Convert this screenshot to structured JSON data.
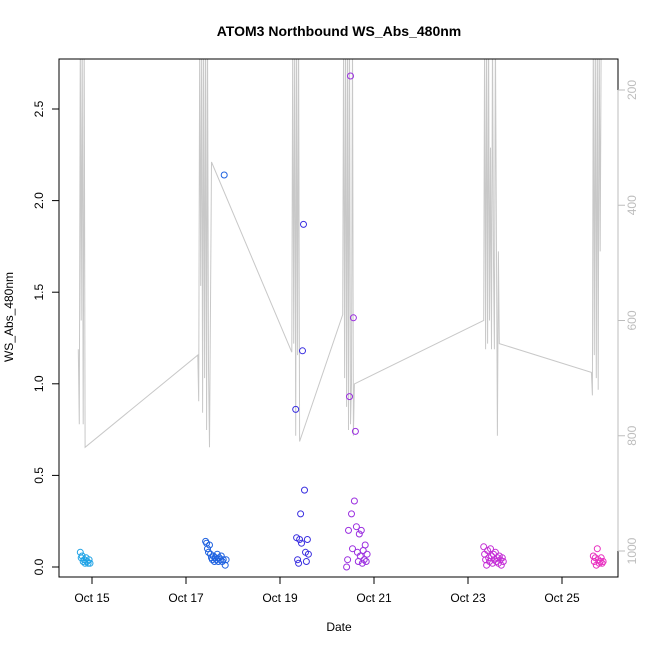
{
  "chart_data": {
    "type": "scatter",
    "title": "ATOM3 Northbound WS_Abs_480nm",
    "xlabel": "Date",
    "ylabel": "WS_Abs_480nm",
    "ylim": [
      0,
      2.78
    ],
    "x_tick_labels": [
      "Oct 15",
      "Oct 17",
      "Oct 19",
      "Oct 21",
      "Oct 23",
      "Oct 25"
    ],
    "x_tick_dates": [
      "2016-10-15",
      "2016-10-17",
      "2016-10-19",
      "2016-10-21",
      "2016-10-23",
      "2016-10-25"
    ],
    "y_ticks": [
      0.0,
      0.5,
      1.0,
      1.5,
      2.0,
      2.5
    ],
    "y_tick_labels": [
      "0.0",
      "0.5",
      "1.0",
      "1.5",
      "2.0",
      "2.5"
    ],
    "secondary_axis": {
      "side": "right",
      "reversed": true,
      "ticks": [
        200,
        400,
        600,
        800,
        1000
      ],
      "tick_labels": [
        "200",
        "400",
        "600",
        "800",
        "1000"
      ],
      "color": "#bdbdbd"
    },
    "colors": {
      "line": "#c8c8c8",
      "axis": "#000000",
      "right_axis": "#bdbdbd"
    },
    "marker": "open-circle",
    "series": [
      {
        "color": "#1fa3e6",
        "points": [
          {
            "x": "2016-10-14 18:00",
            "y": 0.08
          },
          {
            "x": "2016-10-14 18:30",
            "y": 0.05
          },
          {
            "x": "2016-10-14 19:00",
            "y": 0.06
          },
          {
            "x": "2016-10-14 19:30",
            "y": 0.03
          },
          {
            "x": "2016-10-14 20:00",
            "y": 0.04
          },
          {
            "x": "2016-10-14 20:30",
            "y": 0.02
          },
          {
            "x": "2016-10-14 21:00",
            "y": 0.05
          },
          {
            "x": "2016-10-14 21:30",
            "y": 0.03
          },
          {
            "x": "2016-10-14 22:00",
            "y": 0.02
          },
          {
            "x": "2016-10-14 22:30",
            "y": 0.04
          },
          {
            "x": "2016-10-14 23:00",
            "y": 0.02
          }
        ]
      },
      {
        "color": "#1f62e0",
        "points": [
          {
            "x": "2016-10-17 10:00",
            "y": 0.14
          },
          {
            "x": "2016-10-17 10:30",
            "y": 0.13
          },
          {
            "x": "2016-10-17 11:00",
            "y": 0.1
          },
          {
            "x": "2016-10-17 11:30",
            "y": 0.08
          },
          {
            "x": "2016-10-17 12:00",
            "y": 0.12
          },
          {
            "x": "2016-10-17 12:30",
            "y": 0.07
          },
          {
            "x": "2016-10-17 13:00",
            "y": 0.05
          },
          {
            "x": "2016-10-17 13:30",
            "y": 0.04
          },
          {
            "x": "2016-10-17 14:00",
            "y": 0.06
          },
          {
            "x": "2016-10-17 14:30",
            "y": 0.03
          },
          {
            "x": "2016-10-17 15:00",
            "y": 0.05
          },
          {
            "x": "2016-10-17 15:30",
            "y": 0.04
          },
          {
            "x": "2016-10-17 16:00",
            "y": 0.07
          },
          {
            "x": "2016-10-17 16:30",
            "y": 0.03
          },
          {
            "x": "2016-10-17 17:00",
            "y": 0.05
          },
          {
            "x": "2016-10-17 17:30",
            "y": 0.04
          },
          {
            "x": "2016-10-17 18:00",
            "y": 0.06
          },
          {
            "x": "2016-10-17 18:30",
            "y": 0.03
          },
          {
            "x": "2016-10-17 19:00",
            "y": 0.04
          },
          {
            "x": "2016-10-17 19:30",
            "y": 2.14
          },
          {
            "x": "2016-10-17 20:00",
            "y": 0.01
          },
          {
            "x": "2016-10-17 20:30",
            "y": 0.04
          }
        ]
      },
      {
        "color": "#3a2fe0",
        "points": [
          {
            "x": "2016-10-19 08:00",
            "y": 0.86
          },
          {
            "x": "2016-10-19 08:30",
            "y": 0.16
          },
          {
            "x": "2016-10-19 09:00",
            "y": 0.04
          },
          {
            "x": "2016-10-19 09:30",
            "y": 0.02
          },
          {
            "x": "2016-10-19 10:00",
            "y": 0.15
          },
          {
            "x": "2016-10-19 10:30",
            "y": 0.29
          },
          {
            "x": "2016-10-19 11:00",
            "y": 0.13
          },
          {
            "x": "2016-10-19 11:30",
            "y": 1.18
          },
          {
            "x": "2016-10-19 12:00",
            "y": 1.87
          },
          {
            "x": "2016-10-19 12:30",
            "y": 0.42
          },
          {
            "x": "2016-10-19 13:00",
            "y": 0.08
          },
          {
            "x": "2016-10-19 13:30",
            "y": 0.03
          },
          {
            "x": "2016-10-19 14:00",
            "y": 0.15
          },
          {
            "x": "2016-10-19 14:30",
            "y": 0.07
          }
        ]
      },
      {
        "color": "#9b2fe0",
        "points": [
          {
            "x": "2016-10-20 10:00",
            "y": 0.0
          },
          {
            "x": "2016-10-20 10:30",
            "y": 0.04
          },
          {
            "x": "2016-10-20 11:00",
            "y": 0.2
          },
          {
            "x": "2016-10-20 11:30",
            "y": 0.93
          },
          {
            "x": "2016-10-20 12:00",
            "y": 2.68
          },
          {
            "x": "2016-10-20 12:30",
            "y": 0.29
          },
          {
            "x": "2016-10-20 13:00",
            "y": 0.1
          },
          {
            "x": "2016-10-20 13:30",
            "y": 1.36
          },
          {
            "x": "2016-10-20 14:00",
            "y": 0.36
          },
          {
            "x": "2016-10-20 14:30",
            "y": 0.74
          },
          {
            "x": "2016-10-20 15:00",
            "y": 0.22
          },
          {
            "x": "2016-10-20 15:30",
            "y": 0.08
          },
          {
            "x": "2016-10-20 16:00",
            "y": 0.03
          },
          {
            "x": "2016-10-20 16:30",
            "y": 0.18
          },
          {
            "x": "2016-10-20 17:00",
            "y": 0.06
          },
          {
            "x": "2016-10-20 17:30",
            "y": 0.2
          },
          {
            "x": "2016-10-20 18:00",
            "y": 0.02
          },
          {
            "x": "2016-10-20 18:30",
            "y": 0.09
          },
          {
            "x": "2016-10-20 19:00",
            "y": 0.04
          },
          {
            "x": "2016-10-20 19:30",
            "y": 0.12
          },
          {
            "x": "2016-10-20 20:00",
            "y": 0.03
          },
          {
            "x": "2016-10-20 20:30",
            "y": 0.07
          }
        ]
      },
      {
        "color": "#c42fd6",
        "points": [
          {
            "x": "2016-10-23 08:00",
            "y": 0.11
          },
          {
            "x": "2016-10-23 08:30",
            "y": 0.07
          },
          {
            "x": "2016-10-23 09:00",
            "y": 0.04
          },
          {
            "x": "2016-10-23 09:30",
            "y": 0.01
          },
          {
            "x": "2016-10-23 10:00",
            "y": 0.09
          },
          {
            "x": "2016-10-23 10:30",
            "y": 0.05
          },
          {
            "x": "2016-10-23 11:00",
            "y": 0.03
          },
          {
            "x": "2016-10-23 11:30",
            "y": 0.1
          },
          {
            "x": "2016-10-23 12:00",
            "y": 0.06
          },
          {
            "x": "2016-10-23 12:30",
            "y": 0.02
          },
          {
            "x": "2016-10-23 13:00",
            "y": 0.07
          },
          {
            "x": "2016-10-23 13:30",
            "y": 0.04
          },
          {
            "x": "2016-10-23 14:00",
            "y": 0.08
          },
          {
            "x": "2016-10-23 14:30",
            "y": 0.03
          },
          {
            "x": "2016-10-23 15:00",
            "y": 0.05
          },
          {
            "x": "2016-10-23 15:30",
            "y": 0.02
          },
          {
            "x": "2016-10-23 16:00",
            "y": 0.06
          },
          {
            "x": "2016-10-23 16:30",
            "y": 0.04
          },
          {
            "x": "2016-10-23 17:00",
            "y": 0.01
          },
          {
            "x": "2016-10-23 17:30",
            "y": 0.05
          },
          {
            "x": "2016-10-23 18:00",
            "y": 0.03
          }
        ]
      },
      {
        "color": "#e82fc0",
        "points": [
          {
            "x": "2016-10-25 16:00",
            "y": 0.06
          },
          {
            "x": "2016-10-25 16:30",
            "y": 0.03
          },
          {
            "x": "2016-10-25 17:00",
            "y": 0.05
          },
          {
            "x": "2016-10-25 17:30",
            "y": 0.01
          },
          {
            "x": "2016-10-25 18:00",
            "y": 0.1
          },
          {
            "x": "2016-10-25 18:30",
            "y": 0.04
          },
          {
            "x": "2016-10-25 19:00",
            "y": 0.02
          },
          {
            "x": "2016-10-25 19:30",
            "y": 0.03
          },
          {
            "x": "2016-10-25 20:00",
            "y": 0.05
          },
          {
            "x": "2016-10-25 20:30",
            "y": 0.02
          },
          {
            "x": "2016-10-25 21:00",
            "y": 0.03
          }
        ]
      }
    ],
    "secondary_line": {
      "color": "#c8c8c8",
      "points": [
        {
          "x": "2016-10-14 17:00",
          "y": 650
        },
        {
          "x": "2016-10-14 17:30",
          "y": 780
        },
        {
          "x": "2016-10-14 18:00",
          "y": 100
        },
        {
          "x": "2016-10-14 18:30",
          "y": 600
        },
        {
          "x": "2016-10-14 19:00",
          "y": 100
        },
        {
          "x": "2016-10-14 19:30",
          "y": 780
        },
        {
          "x": "2016-10-14 20:00",
          "y": 100
        },
        {
          "x": "2016-10-14 20:30",
          "y": 820
        },
        {
          "x": "2016-10-17 06:00",
          "y": 660
        },
        {
          "x": "2016-10-17 06:30",
          "y": 740
        },
        {
          "x": "2016-10-17 07:00",
          "y": 100
        },
        {
          "x": "2016-10-17 07:30",
          "y": 540
        },
        {
          "x": "2016-10-17 08:00",
          "y": 100
        },
        {
          "x": "2016-10-17 08:30",
          "y": 760
        },
        {
          "x": "2016-10-17 09:00",
          "y": 100
        },
        {
          "x": "2016-10-17 09:30",
          "y": 700
        },
        {
          "x": "2016-10-17 10:00",
          "y": 100
        },
        {
          "x": "2016-10-17 10:30",
          "y": 790
        },
        {
          "x": "2016-10-17 11:00",
          "y": 100
        },
        {
          "x": "2016-10-17 11:30",
          "y": 680
        },
        {
          "x": "2016-10-17 12:00",
          "y": 820
        },
        {
          "x": "2016-10-17 13:00",
          "y": 325
        },
        {
          "x": "2016-10-19 06:00",
          "y": 655
        },
        {
          "x": "2016-10-19 06:30",
          "y": 100
        },
        {
          "x": "2016-10-19 07:00",
          "y": 640
        },
        {
          "x": "2016-10-19 07:30",
          "y": 100
        },
        {
          "x": "2016-10-19 08:00",
          "y": 800
        },
        {
          "x": "2016-10-19 08:30",
          "y": 100
        },
        {
          "x": "2016-10-19 09:00",
          "y": 660
        },
        {
          "x": "2016-10-19 09:30",
          "y": 100
        },
        {
          "x": "2016-10-19 10:00",
          "y": 810
        },
        {
          "x": "2016-10-20 08:00",
          "y": 590
        },
        {
          "x": "2016-10-20 08:30",
          "y": 100
        },
        {
          "x": "2016-10-20 09:00",
          "y": 700
        },
        {
          "x": "2016-10-20 09:30",
          "y": 100
        },
        {
          "x": "2016-10-20 10:00",
          "y": 750
        },
        {
          "x": "2016-10-20 10:30",
          "y": 100
        },
        {
          "x": "2016-10-20 11:00",
          "y": 790
        },
        {
          "x": "2016-10-20 11:30",
          "y": 100
        },
        {
          "x": "2016-10-20 12:00",
          "y": 780
        },
        {
          "x": "2016-10-20 12:30",
          "y": 710
        },
        {
          "x": "2016-10-20 13:00",
          "y": 100
        },
        {
          "x": "2016-10-20 13:30",
          "y": 800
        },
        {
          "x": "2016-10-20 14:00",
          "y": 710
        },
        {
          "x": "2016-10-23 08:00",
          "y": 600
        },
        {
          "x": "2016-10-23 08:30",
          "y": 100
        },
        {
          "x": "2016-10-23 09:00",
          "y": 650
        },
        {
          "x": "2016-10-23 09:30",
          "y": 100
        },
        {
          "x": "2016-10-23 10:00",
          "y": 640
        },
        {
          "x": "2016-10-23 10:30",
          "y": 100
        },
        {
          "x": "2016-10-23 11:00",
          "y": 600
        },
        {
          "x": "2016-10-23 11:30",
          "y": 300
        },
        {
          "x": "2016-10-23 12:00",
          "y": 650
        },
        {
          "x": "2016-10-23 12:30",
          "y": 100
        },
        {
          "x": "2016-10-23 13:00",
          "y": 500
        },
        {
          "x": "2016-10-23 13:30",
          "y": 650
        },
        {
          "x": "2016-10-23 14:00",
          "y": 100
        },
        {
          "x": "2016-10-23 15:00",
          "y": 800
        },
        {
          "x": "2016-10-23 15:30",
          "y": 480
        },
        {
          "x": "2016-10-23 16:00",
          "y": 640
        },
        {
          "x": "2016-10-25 15:00",
          "y": 690
        },
        {
          "x": "2016-10-25 15:30",
          "y": 730
        },
        {
          "x": "2016-10-25 16:00",
          "y": 100
        },
        {
          "x": "2016-10-25 16:30",
          "y": 660
        },
        {
          "x": "2016-10-25 17:00",
          "y": 100
        },
        {
          "x": "2016-10-25 17:30",
          "y": 700
        },
        {
          "x": "2016-10-25 18:00",
          "y": 100
        },
        {
          "x": "2016-10-25 18:30",
          "y": 720
        },
        {
          "x": "2016-10-25 19:00",
          "y": 100
        },
        {
          "x": "2016-10-25 19:30",
          "y": 480
        },
        {
          "x": "2016-10-25 20:00",
          "y": 100
        }
      ]
    }
  }
}
